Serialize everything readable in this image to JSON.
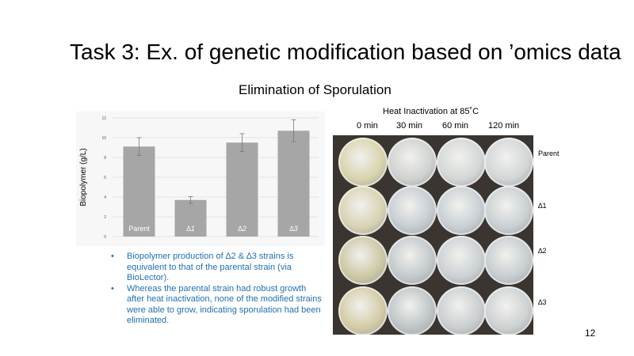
{
  "slide": {
    "title": "Task 3: Ex. of genetic modification based on ’omics data",
    "subtitle": "Elimination of Sporulation",
    "page_number": "12"
  },
  "chart_data": {
    "type": "bar",
    "categories": [
      "Parent",
      "∆1",
      "∆2",
      "∆3"
    ],
    "values": [
      9.1,
      3.7,
      9.5,
      10.7
    ],
    "errors": [
      0.9,
      0.35,
      0.9,
      1.1
    ],
    "ylabel": "Biopolymer (g/L)",
    "ylim": [
      0,
      12
    ],
    "yticks": [
      "0",
      "2",
      "4",
      "6",
      "8",
      "10",
      "12"
    ],
    "grid": true,
    "bar_color": "#a6a6a6"
  },
  "bullets": [
    "Biopolymer production of ∆2 & ∆3 strains is equivalent to that of the parental strain (via BioLector).",
    "Whereas the parental strain had robust growth after heat inactivation, none of the modified strains were able to grow, indicating sporulation had been eliminated."
  ],
  "heat": {
    "title": "Heat Inactivation at 85˚C",
    "columns": [
      "0 min",
      "30 min",
      "60 min",
      "120 min"
    ],
    "rows": [
      "Parent",
      "∆1",
      "∆2",
      "∆3"
    ]
  }
}
